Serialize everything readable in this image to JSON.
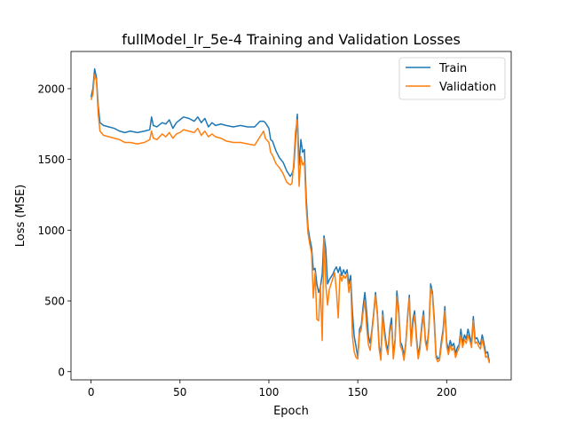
{
  "chart_data": {
    "type": "line",
    "title": "fullModel_lr_5e-4 Training and Validation Losses",
    "xlabel": "Epoch",
    "ylabel": "Loss (MSE)",
    "xlim": [
      -11.3,
      236.3
    ],
    "ylim": [
      -58,
      2263
    ],
    "x_ticks": [
      0,
      50,
      100,
      150,
      200
    ],
    "y_ticks": [
      0,
      500,
      1000,
      1500,
      2000
    ],
    "grid": false,
    "legend_position": "top-right",
    "series": [
      {
        "name": "Train",
        "color": "#1f77b4",
        "points": [
          [
            0,
            1940
          ],
          [
            1,
            2000
          ],
          [
            2,
            2140
          ],
          [
            3,
            2080
          ],
          [
            4,
            1880
          ],
          [
            5,
            1760
          ],
          [
            7,
            1740
          ],
          [
            10,
            1730
          ],
          [
            13,
            1720
          ],
          [
            16,
            1700
          ],
          [
            19,
            1690
          ],
          [
            22,
            1700
          ],
          [
            26,
            1690
          ],
          [
            30,
            1700
          ],
          [
            33,
            1710
          ],
          [
            34,
            1800
          ],
          [
            35,
            1740
          ],
          [
            37,
            1730
          ],
          [
            40,
            1760
          ],
          [
            42,
            1750
          ],
          [
            44,
            1780
          ],
          [
            46,
            1720
          ],
          [
            48,
            1760
          ],
          [
            50,
            1780
          ],
          [
            52,
            1800
          ],
          [
            55,
            1790
          ],
          [
            58,
            1770
          ],
          [
            60,
            1800
          ],
          [
            62,
            1760
          ],
          [
            64,
            1790
          ],
          [
            66,
            1730
          ],
          [
            68,
            1760
          ],
          [
            70,
            1740
          ],
          [
            73,
            1750
          ],
          [
            76,
            1740
          ],
          [
            80,
            1730
          ],
          [
            84,
            1740
          ],
          [
            88,
            1730
          ],
          [
            92,
            1730
          ],
          [
            95,
            1770
          ],
          [
            97,
            1770
          ],
          [
            98,
            1760
          ],
          [
            100,
            1720
          ],
          [
            101,
            1640
          ],
          [
            102,
            1630
          ],
          [
            104,
            1560
          ],
          [
            106,
            1510
          ],
          [
            108,
            1480
          ],
          [
            110,
            1420
          ],
          [
            112,
            1380
          ],
          [
            113,
            1400
          ],
          [
            114,
            1440
          ],
          [
            115,
            1640
          ],
          [
            116,
            1820
          ],
          [
            117,
            1460
          ],
          [
            118,
            1640
          ],
          [
            119,
            1550
          ],
          [
            120,
            1570
          ],
          [
            121,
            1230
          ],
          [
            122,
            1020
          ],
          [
            123,
            940
          ],
          [
            124,
            880
          ],
          [
            125,
            720
          ],
          [
            126,
            730
          ],
          [
            127,
            620
          ],
          [
            128,
            560
          ],
          [
            129,
            600
          ],
          [
            130,
            690
          ],
          [
            131,
            960
          ],
          [
            132,
            870
          ],
          [
            133,
            620
          ],
          [
            134,
            650
          ],
          [
            135,
            670
          ],
          [
            136,
            690
          ],
          [
            137,
            720
          ],
          [
            138,
            740
          ],
          [
            139,
            700
          ],
          [
            140,
            740
          ],
          [
            141,
            680
          ],
          [
            142,
            720
          ],
          [
            143,
            690
          ],
          [
            144,
            720
          ],
          [
            145,
            620
          ],
          [
            146,
            680
          ],
          [
            147,
            420
          ],
          [
            148,
            250
          ],
          [
            149,
            180
          ],
          [
            150,
            100
          ],
          [
            151,
            300
          ],
          [
            152,
            330
          ],
          [
            153,
            460
          ],
          [
            154,
            560
          ],
          [
            155,
            420
          ],
          [
            156,
            250
          ],
          [
            157,
            200
          ],
          [
            158,
            300
          ],
          [
            159,
            420
          ],
          [
            160,
            560
          ],
          [
            161,
            420
          ],
          [
            162,
            190
          ],
          [
            163,
            100
          ],
          [
            164,
            430
          ],
          [
            165,
            300
          ],
          [
            166,
            200
          ],
          [
            167,
            150
          ],
          [
            168,
            300
          ],
          [
            169,
            380
          ],
          [
            170,
            110
          ],
          [
            171,
            230
          ],
          [
            172,
            570
          ],
          [
            173,
            440
          ],
          [
            174,
            210
          ],
          [
            175,
            180
          ],
          [
            176,
            110
          ],
          [
            177,
            200
          ],
          [
            178,
            390
          ],
          [
            179,
            540
          ],
          [
            180,
            200
          ],
          [
            181,
            370
          ],
          [
            182,
            430
          ],
          [
            183,
            250
          ],
          [
            184,
            110
          ],
          [
            185,
            190
          ],
          [
            186,
            330
          ],
          [
            187,
            430
          ],
          [
            188,
            230
          ],
          [
            189,
            180
          ],
          [
            190,
            310
          ],
          [
            191,
            620
          ],
          [
            192,
            560
          ],
          [
            193,
            380
          ],
          [
            194,
            120
          ],
          [
            195,
            90
          ],
          [
            196,
            100
          ],
          [
            197,
            210
          ],
          [
            198,
            300
          ],
          [
            199,
            460
          ],
          [
            200,
            210
          ],
          [
            201,
            150
          ],
          [
            202,
            220
          ],
          [
            203,
            180
          ],
          [
            204,
            200
          ],
          [
            205,
            130
          ],
          [
            206,
            170
          ],
          [
            207,
            190
          ],
          [
            208,
            300
          ],
          [
            209,
            200
          ],
          [
            210,
            260
          ],
          [
            211,
            230
          ],
          [
            212,
            300
          ],
          [
            213,
            250
          ],
          [
            214,
            200
          ],
          [
            215,
            390
          ],
          [
            216,
            230
          ],
          [
            217,
            240
          ],
          [
            218,
            210
          ],
          [
            219,
            190
          ],
          [
            220,
            260
          ],
          [
            221,
            200
          ],
          [
            222,
            130
          ],
          [
            223,
            140
          ],
          [
            224,
            70
          ]
        ]
      },
      {
        "name": "Validation",
        "color": "#ff7f0e",
        "points": [
          [
            0,
            1920
          ],
          [
            1,
            1960
          ],
          [
            2,
            2100
          ],
          [
            3,
            2060
          ],
          [
            4,
            1820
          ],
          [
            5,
            1700
          ],
          [
            7,
            1670
          ],
          [
            10,
            1660
          ],
          [
            13,
            1650
          ],
          [
            16,
            1640
          ],
          [
            19,
            1620
          ],
          [
            22,
            1620
          ],
          [
            26,
            1610
          ],
          [
            30,
            1620
          ],
          [
            33,
            1640
          ],
          [
            34,
            1700
          ],
          [
            35,
            1650
          ],
          [
            37,
            1640
          ],
          [
            40,
            1680
          ],
          [
            42,
            1660
          ],
          [
            44,
            1690
          ],
          [
            46,
            1650
          ],
          [
            48,
            1680
          ],
          [
            50,
            1690
          ],
          [
            52,
            1710
          ],
          [
            55,
            1700
          ],
          [
            58,
            1690
          ],
          [
            60,
            1720
          ],
          [
            62,
            1670
          ],
          [
            64,
            1700
          ],
          [
            66,
            1660
          ],
          [
            68,
            1680
          ],
          [
            70,
            1660
          ],
          [
            73,
            1650
          ],
          [
            76,
            1630
          ],
          [
            80,
            1620
          ],
          [
            84,
            1620
          ],
          [
            88,
            1610
          ],
          [
            92,
            1600
          ],
          [
            95,
            1660
          ],
          [
            97,
            1700
          ],
          [
            98,
            1650
          ],
          [
            100,
            1620
          ],
          [
            101,
            1550
          ],
          [
            102,
            1530
          ],
          [
            104,
            1470
          ],
          [
            106,
            1440
          ],
          [
            108,
            1400
          ],
          [
            110,
            1340
          ],
          [
            112,
            1320
          ],
          [
            113,
            1330
          ],
          [
            114,
            1480
          ],
          [
            115,
            1700
          ],
          [
            116,
            1780
          ],
          [
            117,
            1310
          ],
          [
            118,
            1520
          ],
          [
            119,
            1460
          ],
          [
            120,
            1480
          ],
          [
            121,
            1160
          ],
          [
            122,
            980
          ],
          [
            123,
            900
          ],
          [
            124,
            840
          ],
          [
            125,
            520
          ],
          [
            126,
            700
          ],
          [
            127,
            370
          ],
          [
            128,
            360
          ],
          [
            129,
            610
          ],
          [
            130,
            220
          ],
          [
            131,
            940
          ],
          [
            132,
            620
          ],
          [
            133,
            470
          ],
          [
            134,
            580
          ],
          [
            135,
            620
          ],
          [
            136,
            660
          ],
          [
            137,
            700
          ],
          [
            138,
            570
          ],
          [
            139,
            380
          ],
          [
            140,
            690
          ],
          [
            141,
            640
          ],
          [
            142,
            680
          ],
          [
            143,
            660
          ],
          [
            144,
            690
          ],
          [
            145,
            560
          ],
          [
            146,
            640
          ],
          [
            147,
            250
          ],
          [
            148,
            140
          ],
          [
            149,
            100
          ],
          [
            150,
            90
          ],
          [
            151,
            270
          ],
          [
            152,
            300
          ],
          [
            153,
            420
          ],
          [
            154,
            500
          ],
          [
            155,
            310
          ],
          [
            156,
            190
          ],
          [
            157,
            150
          ],
          [
            158,
            280
          ],
          [
            159,
            400
          ],
          [
            160,
            540
          ],
          [
            161,
            400
          ],
          [
            162,
            160
          ],
          [
            163,
            80
          ],
          [
            164,
            400
          ],
          [
            165,
            260
          ],
          [
            166,
            170
          ],
          [
            167,
            120
          ],
          [
            168,
            280
          ],
          [
            169,
            330
          ],
          [
            170,
            90
          ],
          [
            171,
            210
          ],
          [
            172,
            530
          ],
          [
            173,
            410
          ],
          [
            174,
            180
          ],
          [
            175,
            150
          ],
          [
            176,
            80
          ],
          [
            177,
            190
          ],
          [
            178,
            370
          ],
          [
            179,
            520
          ],
          [
            180,
            180
          ],
          [
            181,
            330
          ],
          [
            182,
            400
          ],
          [
            183,
            220
          ],
          [
            184,
            90
          ],
          [
            185,
            160
          ],
          [
            186,
            300
          ],
          [
            187,
            400
          ],
          [
            188,
            210
          ],
          [
            189,
            150
          ],
          [
            190,
            290
          ],
          [
            191,
            590
          ],
          [
            192,
            540
          ],
          [
            193,
            340
          ],
          [
            194,
            100
          ],
          [
            195,
            70
          ],
          [
            196,
            80
          ],
          [
            197,
            180
          ],
          [
            198,
            270
          ],
          [
            199,
            430
          ],
          [
            200,
            180
          ],
          [
            201,
            120
          ],
          [
            202,
            190
          ],
          [
            203,
            150
          ],
          [
            204,
            170
          ],
          [
            205,
            100
          ],
          [
            206,
            140
          ],
          [
            207,
            170
          ],
          [
            208,
            260
          ],
          [
            209,
            170
          ],
          [
            210,
            230
          ],
          [
            211,
            200
          ],
          [
            212,
            260
          ],
          [
            213,
            220
          ],
          [
            214,
            170
          ],
          [
            215,
            360
          ],
          [
            216,
            200
          ],
          [
            217,
            210
          ],
          [
            218,
            180
          ],
          [
            219,
            160
          ],
          [
            220,
            230
          ],
          [
            221,
            170
          ],
          [
            222,
            100
          ],
          [
            223,
            110
          ],
          [
            224,
            60
          ]
        ]
      }
    ]
  }
}
